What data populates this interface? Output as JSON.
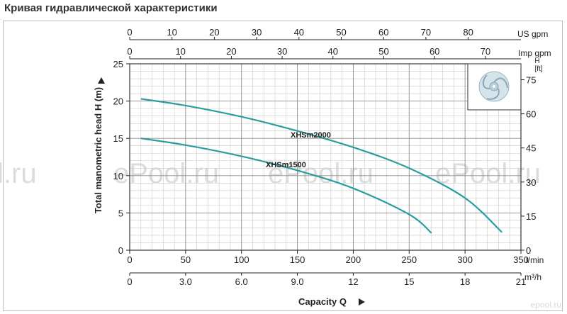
{
  "page": {
    "title": "Кривая гидравлической характеристики"
  },
  "watermark": {
    "text": "ePool.ru",
    "left_fragment": "l.ru",
    "brand": "epool.ru"
  },
  "chart_data": {
    "type": "line",
    "title": "",
    "xlabel": "Capacity Q",
    "ylabel": "Total manometric head H (m)",
    "ylabel_right": "H [ft]",
    "xlim": [
      0,
      350
    ],
    "ylim": [
      0,
      25
    ],
    "grid": true,
    "axes": {
      "x_lmin": {
        "unit": "l/min",
        "ticks": [
          "0",
          "50",
          "100",
          "150",
          "200",
          "250",
          "300",
          "350"
        ],
        "values": [
          0,
          50,
          100,
          150,
          200,
          250,
          300,
          350
        ]
      },
      "x_m3h": {
        "unit": "m³/h",
        "ticks": [
          "0",
          "3.0",
          "6.0",
          "9.0",
          "12",
          "15",
          "18",
          "21"
        ],
        "values": [
          0,
          3,
          6,
          9,
          12,
          15,
          18,
          21
        ]
      },
      "x_usgpm": {
        "unit": "US gpm",
        "ticks": [
          "0",
          "10",
          "20",
          "30",
          "40",
          "50",
          "60",
          "70",
          "80"
        ],
        "values": [
          0,
          10,
          20,
          30,
          40,
          50,
          60,
          70,
          80
        ]
      },
      "x_impgpm": {
        "unit": "Imp gpm",
        "ticks": [
          "0",
          "10",
          "20",
          "30",
          "40",
          "50",
          "60",
          "70"
        ],
        "values": [
          0,
          10,
          20,
          30,
          40,
          50,
          60,
          70
        ]
      },
      "y_m": {
        "ticks": [
          "0",
          "5",
          "10",
          "15",
          "20",
          "25"
        ],
        "values": [
          0,
          5,
          10,
          15,
          20,
          25
        ]
      },
      "y_ft": {
        "unit_top": "H",
        "unit": "[ft]",
        "ticks": [
          "0",
          "15",
          "30",
          "45",
          "60",
          "75"
        ],
        "values": [
          0,
          15,
          30,
          45,
          60,
          75
        ]
      }
    },
    "series": [
      {
        "name": "XHSm2000",
        "color": "#2a9d9d",
        "x": [
          10,
          50,
          100,
          150,
          200,
          250,
          300,
          333
        ],
        "y": [
          20.3,
          19.4,
          17.9,
          16.0,
          13.8,
          11.0,
          7.0,
          2.4
        ]
      },
      {
        "name": "XHSm1500",
        "color": "#2a9d9d",
        "x": [
          10,
          50,
          100,
          150,
          200,
          250,
          270
        ],
        "y": [
          15.0,
          14.1,
          12.6,
          10.7,
          8.3,
          4.8,
          2.3
        ]
      }
    ],
    "inset": {
      "icon": "impeller-icon"
    }
  }
}
